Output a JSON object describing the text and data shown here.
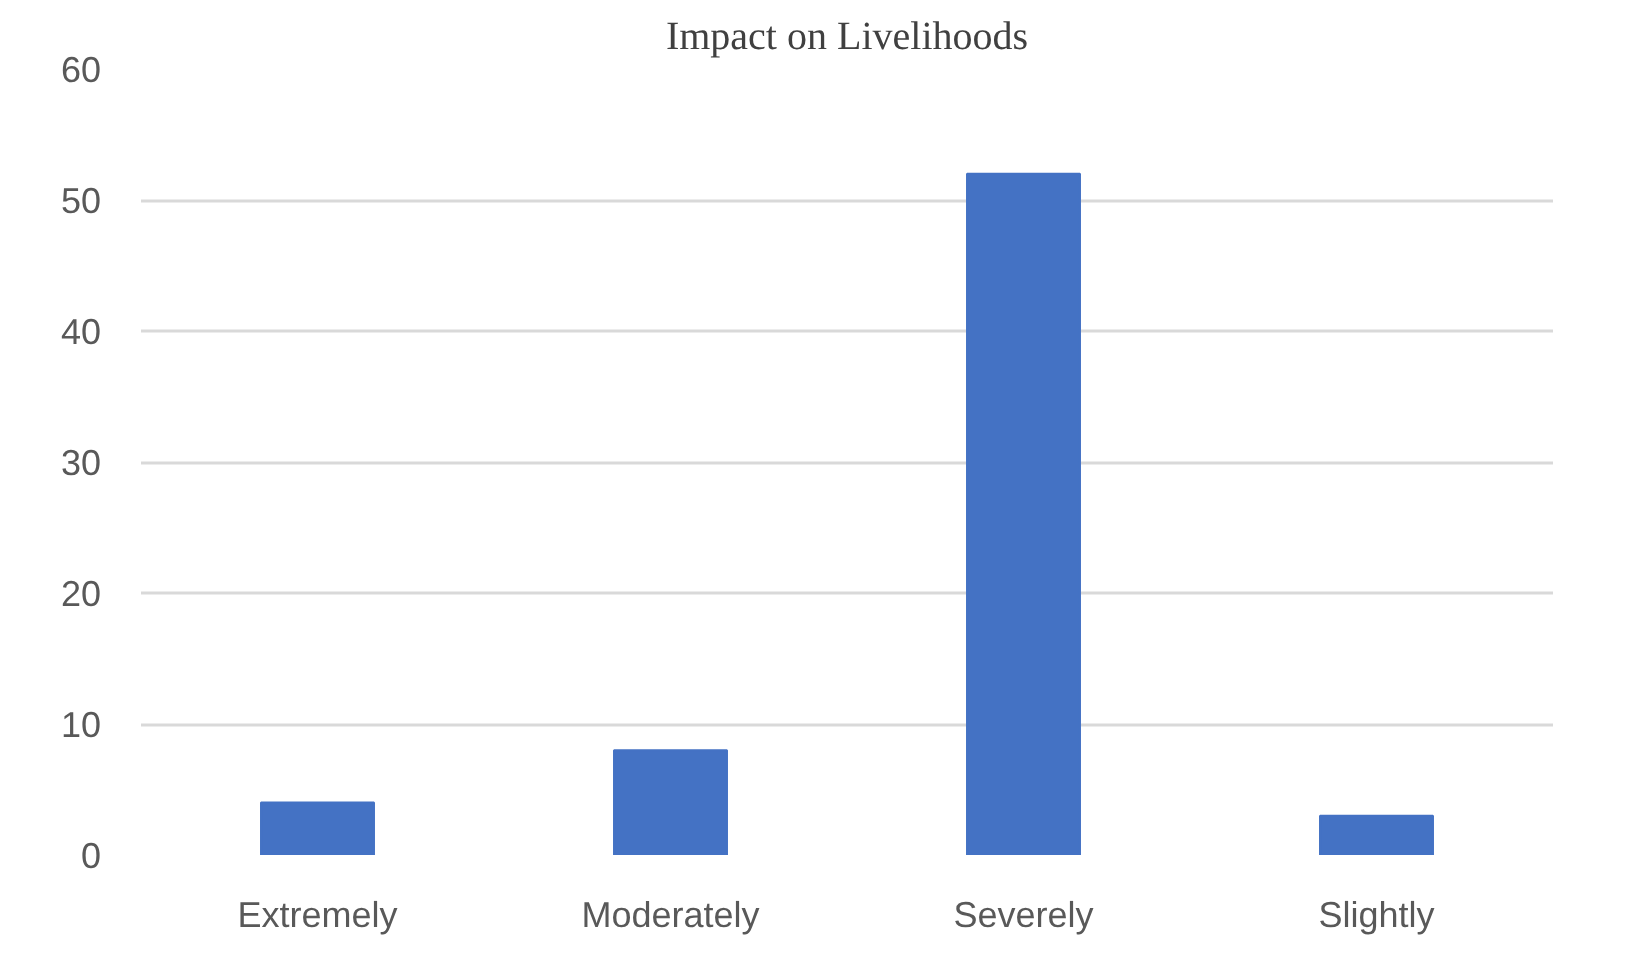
{
  "chart_data": {
    "type": "bar",
    "title": "Impact on Livelihoods",
    "categories": [
      "Extremely",
      "Moderately",
      "Severely",
      "Slightly"
    ],
    "values": [
      4,
      8,
      52,
      3
    ],
    "color": "#4472c4",
    "ylim": [
      0,
      60
    ],
    "yticks": [
      0,
      10,
      20,
      30,
      40,
      50,
      60
    ],
    "grid": "y"
  }
}
